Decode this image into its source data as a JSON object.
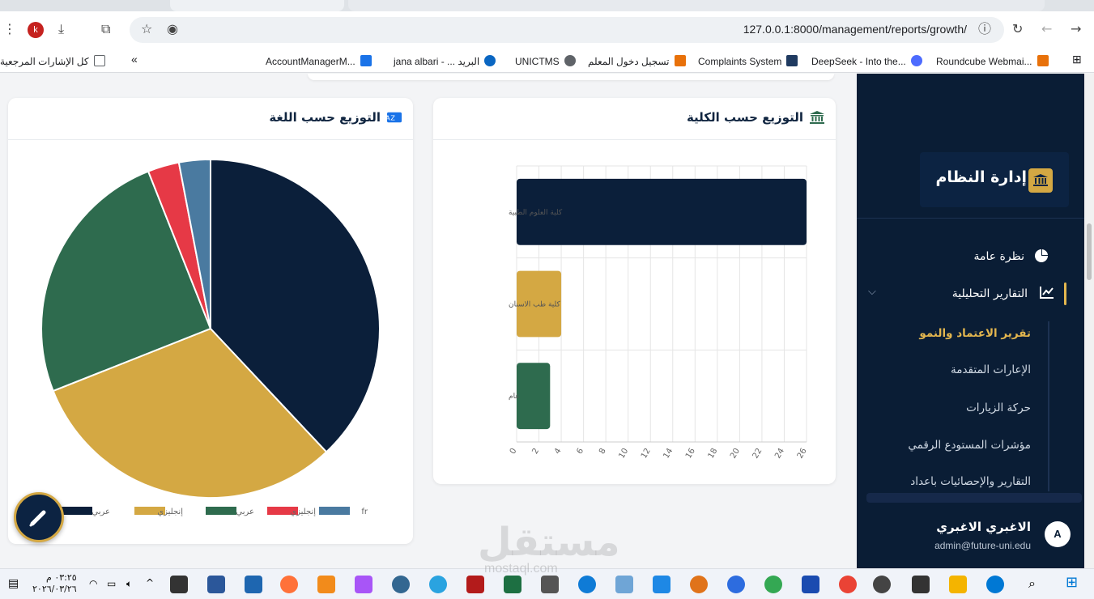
{
  "browser": {
    "url": "127.0.0.1:8000/management/reports/growth/",
    "profile_initial": "k",
    "bookmarks": [
      {
        "label": "كل الإشارات المرجعية",
        "color": "#5f6368"
      },
      {
        "label": "AccountManagerM...",
        "color": "#1a73e8"
      },
      {
        "label": "jana albari - ... البريد",
        "color": "#0a66c2"
      },
      {
        "label": "UNICTMS",
        "color": "#5f6368"
      },
      {
        "label": "تسجيل دخول المعلم",
        "color": "#e8710a"
      },
      {
        "label": "Complaints System",
        "color": "#1f3a60"
      },
      {
        "label": "DeepSeek - Into the...",
        "color": "#4d6bfe"
      },
      {
        "label": "Roundcube Webmai...",
        "color": "#e8710a"
      }
    ]
  },
  "sidebar": {
    "brand": "إدارة النظام",
    "nav": [
      {
        "label": "نظرة عامة",
        "icon": "pie-chart-icon"
      },
      {
        "label": "التقارير التحليلية",
        "icon": "line-chart-icon"
      }
    ],
    "sub": [
      {
        "label": "تقرير الاعتماد والنمو",
        "active": true
      },
      {
        "label": "الإعارات المتقدمة",
        "active": false
      },
      {
        "label": "حركة الزيارات",
        "active": false
      },
      {
        "label": "مؤشرات المستودع الرقمي",
        "active": false
      },
      {
        "label": "التقارير والإحصائيات باعداد",
        "active": false
      }
    ],
    "user": {
      "name": "الاغبري الاغبري",
      "email": "admin@future-uni.edu",
      "initial": "A"
    }
  },
  "cards": {
    "college": {
      "title": "التوزيع حسب الكلية",
      "icon": "university-icon"
    },
    "language": {
      "title": "التوزيع حسب اللغة",
      "icon": "language-icon"
    }
  },
  "chart_data": [
    {
      "type": "bar",
      "orientation": "horizontal",
      "categories": [
        "كلية العلوم الطبية",
        "كلية طب الاسنان",
        "عام"
      ],
      "values": [
        26,
        4,
        3
      ],
      "xlim": [
        0,
        26
      ],
      "xticks": [
        0,
        2,
        4,
        6,
        8,
        10,
        12,
        14,
        16,
        18,
        20,
        22,
        24,
        26
      ],
      "colors": [
        "#0b1f3a",
        "#d4a843",
        "#2e6b4e"
      ],
      "grid": true
    },
    {
      "type": "pie",
      "labels": [
        "عربي",
        "إنجليزي",
        "عربي",
        "إنجليزي",
        "fr"
      ],
      "values": [
        38,
        31,
        25,
        3,
        3
      ],
      "colors": [
        "#0b1f3a",
        "#d4a843",
        "#2e6b4e",
        "#e63946",
        "#4a7aa0"
      ],
      "legend": "bottom"
    }
  ],
  "taskbar": {
    "time": "٠٣:٢٥ م",
    "date": "٢٠٢٦/٠٣/٢٦"
  },
  "watermark": {
    "text": "مستقل",
    "sub": "mostaql.com"
  }
}
